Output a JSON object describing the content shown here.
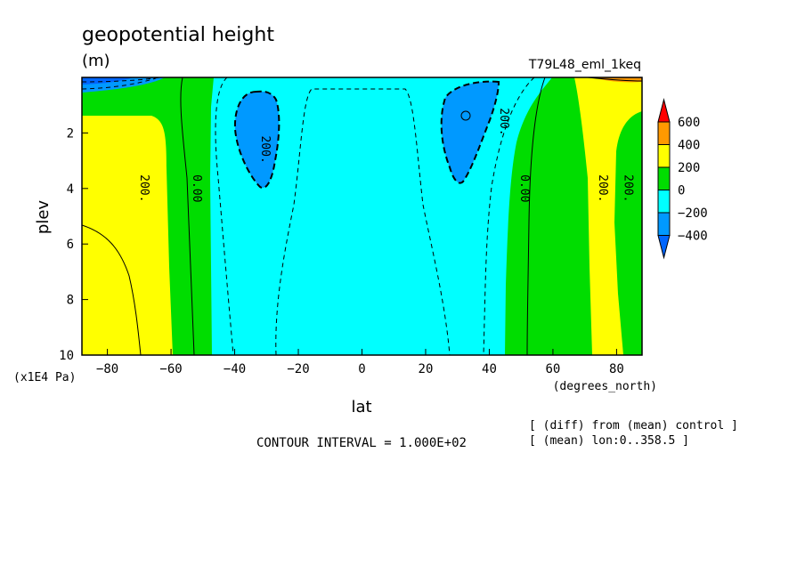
{
  "chart_data": {
    "type": "contour",
    "title": "geopotential height",
    "units": "(m)",
    "run_label": "T79L48_eml_1keq",
    "xlabel": "lat",
    "x_units": "(degrees_north)",
    "ylabel": "plev",
    "y_units": "(x1E4 Pa)",
    "xlim": [
      -88,
      88
    ],
    "ylim": [
      10,
      0
    ],
    "x_ticks": [
      -80,
      -60,
      -40,
      -20,
      0,
      20,
      40,
      60,
      80
    ],
    "y_ticks": [
      2,
      4,
      6,
      8,
      10
    ],
    "contour_interval_text": "CONTOUR INTERVAL = 1.000E+02",
    "notes": [
      "[ (diff) from (mean) control ]",
      "[ (mean) lon:0..358.5 ]"
    ],
    "contour_labels": [
      {
        "text": "200.",
        "lat": -69.5,
        "plev": 4.0
      },
      {
        "text": "0.00",
        "lat": -53.0,
        "plev": 4.0
      },
      {
        "text": "200.",
        "lat": -31.5,
        "plev": 2.6
      },
      {
        "text": "200.",
        "lat": 43.5,
        "plev": 1.6
      },
      {
        "text": "0.00",
        "lat": 50.0,
        "plev": 4.0
      },
      {
        "text": "200.",
        "lat": 74.5,
        "plev": 4.0
      },
      {
        "text": "200.",
        "lat": 82.5,
        "plev": 4.0
      }
    ],
    "colorbar": {
      "levels": [
        "600",
        "400",
        "200",
        "0",
        "-200",
        "-400"
      ],
      "colors": [
        "#ff0000",
        "#ff9900",
        "#ffff00",
        "#00dd00",
        "#00ffff",
        "#0099ff",
        "#0066ff"
      ]
    },
    "regions": [
      {
        "band": "yellow",
        "lat_range": [
          -88,
          -60
        ],
        "plev_range": [
          1.2,
          10
        ]
      },
      {
        "band": "green",
        "lat_range": [
          -60,
          -48
        ],
        "plev_range": [
          0,
          10
        ]
      },
      {
        "band": "cyan",
        "lat_range": [
          -48,
          45
        ],
        "plev_range": [
          0,
          10
        ]
      },
      {
        "band": "blue",
        "lat_range": [
          -38,
          -29
        ],
        "plev_range": [
          0.6,
          4.0
        ]
      },
      {
        "band": "blue",
        "lat_range": [
          28,
          39
        ],
        "plev_range": [
          0.2,
          3.9
        ]
      },
      {
        "band": "green",
        "lat_range": [
          45,
          69
        ],
        "plev_range": [
          0,
          10
        ]
      },
      {
        "band": "yellow",
        "lat_range": [
          69,
          88
        ],
        "plev_range": [
          0,
          10
        ]
      },
      {
        "band": "green",
        "lat_range": [
          81,
          88
        ],
        "plev_range": [
          1.2,
          10
        ]
      }
    ]
  }
}
